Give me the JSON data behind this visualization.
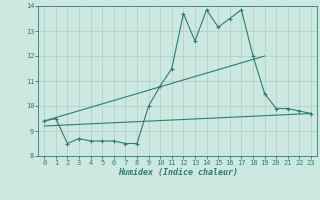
{
  "title": "",
  "xlabel": "Humidex (Indice chaleur)",
  "xlim": [
    -0.5,
    23.5
  ],
  "ylim": [
    8,
    14
  ],
  "yticks": [
    8,
    9,
    10,
    11,
    12,
    13,
    14
  ],
  "xticks": [
    0,
    1,
    2,
    3,
    4,
    5,
    6,
    7,
    8,
    9,
    10,
    11,
    12,
    13,
    14,
    15,
    16,
    17,
    18,
    19,
    20,
    21,
    22,
    23
  ],
  "line_color": "#2e7d6e",
  "bg_color": "#cce8e0",
  "grid_color": "#aacfc8",
  "line1_x": [
    0,
    1,
    2,
    3,
    4,
    5,
    6,
    7,
    8,
    9,
    10,
    11,
    12,
    13,
    14,
    15,
    16,
    17,
    18,
    19,
    20,
    21,
    22,
    23
  ],
  "line1_y": [
    9.4,
    9.5,
    8.5,
    8.7,
    8.6,
    8.6,
    8.6,
    8.5,
    8.5,
    10.0,
    10.8,
    11.5,
    13.7,
    12.6,
    13.85,
    13.15,
    13.5,
    13.85,
    12.0,
    10.5,
    9.9,
    9.9,
    9.8,
    9.7
  ],
  "line2_x": [
    0,
    19
  ],
  "line2_y": [
    9.4,
    12.0
  ],
  "line3_x": [
    0,
    23
  ],
  "line3_y": [
    9.2,
    9.7
  ]
}
